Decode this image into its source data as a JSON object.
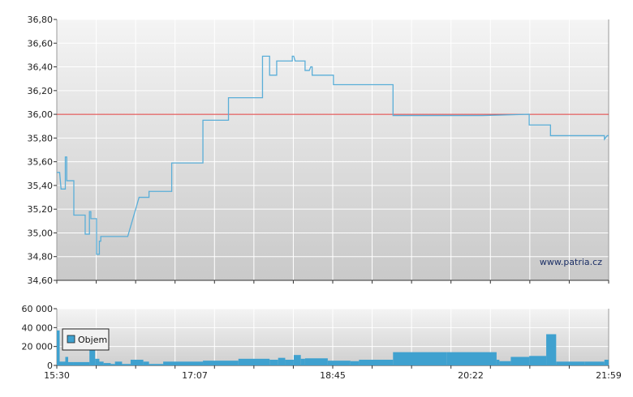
{
  "watermark": "www.patria.cz",
  "colors": {
    "price_line": "#5aaed8",
    "reference_line": "#e03a3a",
    "volume_bar": "#3fa1cf",
    "legend_box_fill": "#3fa1cf"
  },
  "chart_data": [
    {
      "type": "line",
      "name": "price",
      "y_ticks": [
        "34,60",
        "34,80",
        "35,00",
        "35,20",
        "35,40",
        "35,60",
        "35,80",
        "36,00",
        "36,20",
        "36,40",
        "36,60",
        "36,80"
      ],
      "y_tick_values": [
        34.6,
        34.8,
        35.0,
        35.2,
        35.4,
        35.6,
        35.8,
        36.0,
        36.2,
        36.4,
        36.6,
        36.8
      ],
      "ylim": [
        34.6,
        36.8
      ],
      "x_tick_labels": [
        "15:30",
        "17:07",
        "18:45",
        "20:22",
        "21:59"
      ],
      "xlim_minutes": [
        930,
        1319
      ],
      "reference_level": 36.0,
      "grid": true,
      "points": [
        [
          "15:30",
          35.51
        ],
        [
          "15:32",
          35.51
        ],
        [
          "15:33",
          35.37
        ],
        [
          "15:36",
          35.37
        ],
        [
          "15:36",
          35.64
        ],
        [
          "15:37",
          35.64
        ],
        [
          "15:37",
          35.44
        ],
        [
          "15:42",
          35.44
        ],
        [
          "15:42",
          35.15
        ],
        [
          "15:50",
          35.15
        ],
        [
          "15:50",
          34.99
        ],
        [
          "15:53",
          34.99
        ],
        [
          "15:53",
          35.18
        ],
        [
          "15:54",
          35.18
        ],
        [
          "15:54",
          35.12
        ],
        [
          "15:58",
          35.12
        ],
        [
          "15:58",
          34.82
        ],
        [
          "16:00",
          34.82
        ],
        [
          "16:00",
          34.93
        ],
        [
          "16:01",
          34.93
        ],
        [
          "16:01",
          34.97
        ],
        [
          "16:10",
          34.97
        ],
        [
          "16:20",
          34.97
        ],
        [
          "16:28",
          35.3
        ],
        [
          "16:35",
          35.3
        ],
        [
          "16:35",
          35.35
        ],
        [
          "16:45",
          35.35
        ],
        [
          "16:51",
          35.35
        ],
        [
          "16:51",
          35.59
        ],
        [
          "17:13",
          35.59
        ],
        [
          "17:13",
          35.95
        ],
        [
          "17:31",
          35.95
        ],
        [
          "17:31",
          36.14
        ],
        [
          "17:55",
          36.14
        ],
        [
          "17:55",
          36.49
        ],
        [
          "18:00",
          36.49
        ],
        [
          "18:00",
          36.33
        ],
        [
          "18:05",
          36.33
        ],
        [
          "18:05",
          36.45
        ],
        [
          "18:16",
          36.45
        ],
        [
          "18:16",
          36.49
        ],
        [
          "18:17",
          36.49
        ],
        [
          "18:18",
          36.45
        ],
        [
          "18:25",
          36.45
        ],
        [
          "18:25",
          36.37
        ],
        [
          "18:28",
          36.37
        ],
        [
          "18:29",
          36.4
        ],
        [
          "18:30",
          36.4
        ],
        [
          "18:30",
          36.33
        ],
        [
          "18:45",
          36.33
        ],
        [
          "18:45",
          36.25
        ],
        [
          "19:27",
          36.25
        ],
        [
          "19:27",
          35.99
        ],
        [
          "20:30",
          35.99
        ],
        [
          "21:03",
          36.0
        ],
        [
          "21:03",
          35.91
        ],
        [
          "21:18",
          35.91
        ],
        [
          "21:18",
          35.82
        ],
        [
          "21:56",
          35.82
        ],
        [
          "21:56",
          35.79
        ],
        [
          "21:58",
          35.82
        ],
        [
          "21:59",
          35.82
        ]
      ]
    },
    {
      "type": "bar",
      "name": "volume",
      "legend": "Objem",
      "y_ticks": [
        "0",
        "20 000",
        "40 000",
        "60 000"
      ],
      "y_tick_values": [
        0,
        20000,
        40000,
        60000
      ],
      "ylim": [
        0,
        60000
      ],
      "x_tick_labels": [
        "15:30",
        "17:07",
        "18:45",
        "20:22",
        "21:59"
      ],
      "xlim_minutes": [
        930,
        1319
      ],
      "segments": [
        [
          "15:30",
          "15:32",
          37000
        ],
        [
          "15:32",
          "15:36",
          4000
        ],
        [
          "15:36",
          "15:38",
          9000
        ],
        [
          "15:38",
          "15:42",
          3500
        ],
        [
          "15:42",
          "15:53",
          3500
        ],
        [
          "15:53",
          "15:57",
          34000
        ],
        [
          "15:57",
          "16:00",
          7000
        ],
        [
          "16:00",
          "16:03",
          4000
        ],
        [
          "16:03",
          "16:08",
          2500
        ],
        [
          "16:08",
          "16:11",
          1500
        ],
        [
          "16:11",
          "16:16",
          4000
        ],
        [
          "16:16",
          "16:22",
          1500
        ],
        [
          "16:22",
          "16:31",
          6000
        ],
        [
          "16:31",
          "16:35",
          4000
        ],
        [
          "16:35",
          "16:45",
          1500
        ],
        [
          "16:45",
          "17:13",
          4000
        ],
        [
          "17:13",
          "17:38",
          5000
        ],
        [
          "17:38",
          "18:00",
          7000
        ],
        [
          "18:00",
          "18:06",
          6000
        ],
        [
          "18:06",
          "18:11",
          8000
        ],
        [
          "18:11",
          "18:17",
          6000
        ],
        [
          "18:17",
          "18:22",
          11000
        ],
        [
          "18:22",
          "18:25",
          7000
        ],
        [
          "18:25",
          "18:41",
          7500
        ],
        [
          "18:41",
          "18:57",
          5000
        ],
        [
          "18:57",
          "19:03",
          4500
        ],
        [
          "19:03",
          "19:27",
          6000
        ],
        [
          "19:27",
          "20:05",
          14000
        ],
        [
          "20:05",
          "20:40",
          14000
        ],
        [
          "20:40",
          "20:42",
          6000
        ],
        [
          "20:42",
          "20:50",
          4500
        ],
        [
          "20:50",
          "21:03",
          9000
        ],
        [
          "21:03",
          "21:15",
          10000
        ],
        [
          "21:15",
          "21:22",
          33000
        ],
        [
          "21:22",
          "21:42",
          4000
        ],
        [
          "21:42",
          "21:56",
          4000
        ],
        [
          "21:56",
          "21:59",
          6000
        ]
      ]
    }
  ]
}
